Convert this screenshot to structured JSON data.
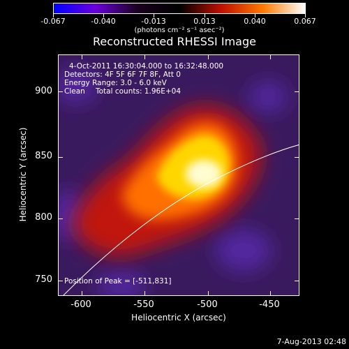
{
  "colorbar": {
    "labels": [
      "-0.067",
      "-0.040",
      "-0.013",
      "0.013",
      "0.040",
      "0.067"
    ],
    "units": "(photons cm⁻² s⁻¹ asec⁻²)",
    "range": [
      -0.067,
      0.067
    ],
    "colors": [
      "#0000ff",
      "#6a00d9",
      "#1a001f",
      "#000000",
      "#c01000",
      "#ff7a00",
      "#ffffff"
    ]
  },
  "title": "Reconstructed RHESSI Image",
  "info": {
    "time_range": "4-Oct-2011 16:30:04.000 to 16:32:48.000",
    "detectors": "Detectors: 4F 5F 6F 7F 8F, Att 0",
    "energy": "Energy Range: 3.0 - 6.0 keV",
    "method": "Clean",
    "counts": "Total counts: 1.96E+04"
  },
  "peak_label": "Position of Peak = [-511,831]",
  "axes": {
    "x_title": "Heliocentric X (arcsec)",
    "y_title": "Heliocentric Y (arcsec)",
    "x_ticks": [
      "-600",
      "-550",
      "-500",
      "-450"
    ],
    "y_ticks": [
      "900",
      "850",
      "800",
      "750"
    ],
    "x_range": [
      -620,
      -430
    ],
    "y_range": [
      737,
      925
    ]
  },
  "image": {
    "peak": [
      -511,
      831
    ],
    "colors": {
      "background": "#3a1a5e",
      "deep": "#5228a0",
      "mid_red": "#c01808",
      "orange": "#ff7000",
      "yellow": "#ffd600",
      "core": "#fffcd0",
      "limb_line": "#ffffff"
    }
  },
  "date_stamp": "7-Aug-2013 02:48"
}
